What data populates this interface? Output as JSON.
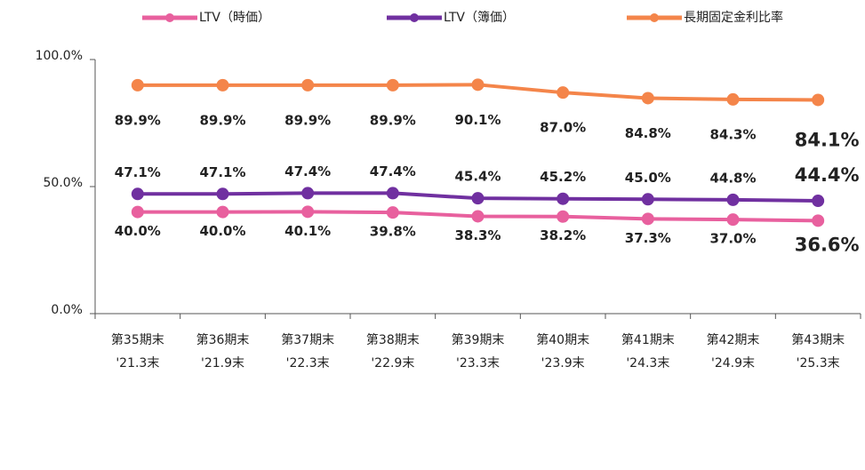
{
  "chart_data": {
    "type": "line",
    "categories": [
      [
        "第35期末",
        "'21.3末"
      ],
      [
        "第36期末",
        "'21.9末"
      ],
      [
        "第37期末",
        "'22.3末"
      ],
      [
        "第38期末",
        "'22.9末"
      ],
      [
        "第39期末",
        "'23.3末"
      ],
      [
        "第40期末",
        "'23.9末"
      ],
      [
        "第41期末",
        "'24.3末"
      ],
      [
        "第42期末",
        "'24.9末"
      ],
      [
        "第43期末",
        "'25.3末"
      ]
    ],
    "series": [
      {
        "name": "LTV（時価）",
        "color": "#e8609e",
        "values": [
          40.0,
          40.0,
          40.1,
          39.8,
          38.3,
          38.2,
          37.3,
          37.0,
          36.6
        ],
        "value_labels": [
          "40.0%",
          "40.0%",
          "40.1%",
          "39.8%",
          "38.3%",
          "38.2%",
          "37.3%",
          "37.0%",
          "36.6%"
        ]
      },
      {
        "name": "LTV（簿価）",
        "color": "#7030a0",
        "values": [
          47.1,
          47.1,
          47.4,
          47.4,
          45.4,
          45.2,
          45.0,
          44.8,
          44.4
        ],
        "value_labels": [
          "47.1%",
          "47.1%",
          "47.4%",
          "47.4%",
          "45.4%",
          "45.2%",
          "45.0%",
          "44.8%",
          "44.4%"
        ]
      },
      {
        "name": "長期固定金利比率",
        "color": "#f4854a",
        "values": [
          89.9,
          89.9,
          89.9,
          89.9,
          90.1,
          87.0,
          84.8,
          84.3,
          84.1
        ],
        "value_labels": [
          "89.9%",
          "89.9%",
          "89.9%",
          "89.9%",
          "90.1%",
          "87.0%",
          "84.8%",
          "84.3%",
          "84.1%"
        ]
      }
    ],
    "ylim": [
      0,
      100
    ],
    "yticks": [
      {
        "value": 0,
        "label": "0.0%"
      },
      {
        "value": 50,
        "label": "50.0%"
      },
      {
        "value": 100,
        "label": "100.0%"
      }
    ]
  }
}
